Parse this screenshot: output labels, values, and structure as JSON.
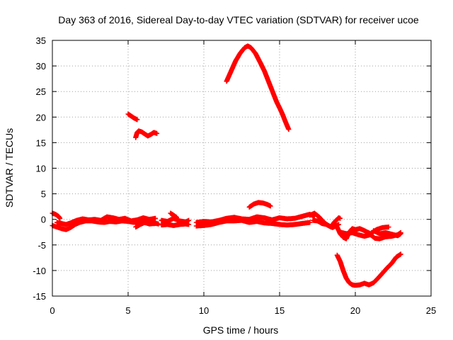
{
  "chart_data": {
    "type": "scatter",
    "title": "Day 363 of 2016, Sidereal Day-to-day VTEC variation (SDTVAR) for receiver ucoe",
    "xlabel": "GPS time / hours",
    "ylabel": "SDTVAR / TECUs",
    "xlim": [
      0,
      25
    ],
    "ylim": [
      -15,
      35
    ],
    "xticks": [
      0,
      5,
      10,
      15,
      20,
      25
    ],
    "yticks": [
      -15,
      -10,
      -5,
      0,
      5,
      10,
      15,
      20,
      25,
      30,
      35
    ],
    "grid": true,
    "marker": "+",
    "color": "#ff0000",
    "series": [
      {
        "name": "arc-1",
        "points": [
          [
            0.0,
            1.2
          ],
          [
            0.2,
            1.0
          ],
          [
            0.4,
            0.6
          ],
          [
            0.5,
            0.2
          ]
        ]
      },
      {
        "name": "arc-2",
        "points": [
          [
            0.0,
            -1.2
          ],
          [
            0.3,
            -1.5
          ],
          [
            0.6,
            -1.8
          ],
          [
            0.9,
            -2.0
          ],
          [
            1.2,
            -1.6
          ],
          [
            1.5,
            -1.0
          ],
          [
            1.8,
            -0.6
          ],
          [
            2.2,
            -0.3
          ],
          [
            2.6,
            -0.3
          ],
          [
            3.0,
            -0.5
          ],
          [
            3.4,
            -0.6
          ],
          [
            3.8,
            -0.4
          ],
          [
            4.2,
            -0.5
          ],
          [
            4.6,
            -0.3
          ],
          [
            5.0,
            -0.4
          ],
          [
            5.4,
            -0.6
          ],
          [
            5.8,
            -0.5
          ],
          [
            6.2,
            -0.7
          ],
          [
            6.6,
            -0.6
          ],
          [
            7.0,
            -0.9
          ]
        ]
      },
      {
        "name": "arc-3",
        "points": [
          [
            0.3,
            -0.6
          ],
          [
            0.6,
            -0.8
          ],
          [
            0.9,
            -1.0
          ],
          [
            1.2,
            -0.7
          ],
          [
            1.6,
            -0.2
          ],
          [
            2.0,
            0.1
          ],
          [
            2.4,
            -0.1
          ],
          [
            2.8,
            0.0
          ],
          [
            3.2,
            -0.2
          ],
          [
            3.6,
            0.5
          ],
          [
            4.0,
            0.3
          ],
          [
            4.4,
            0.0
          ],
          [
            4.8,
            0.2
          ],
          [
            5.2,
            -0.3
          ],
          [
            5.6,
            -0.1
          ],
          [
            6.0,
            0.3
          ],
          [
            6.4,
            0.0
          ],
          [
            6.8,
            0.2
          ]
        ]
      },
      {
        "name": "arc-4",
        "points": [
          [
            5.5,
            -1.5
          ],
          [
            5.8,
            -1.0
          ],
          [
            6.1,
            -0.6
          ],
          [
            6.4,
            -0.9
          ],
          [
            6.8,
            -0.8
          ]
        ]
      },
      {
        "name": "arc-5",
        "points": [
          [
            5.0,
            20.6
          ],
          [
            5.2,
            20.2
          ],
          [
            5.4,
            19.8
          ],
          [
            5.6,
            19.5
          ]
        ]
      },
      {
        "name": "arc-6",
        "points": [
          [
            5.5,
            16.0
          ],
          [
            5.6,
            17.0
          ],
          [
            5.7,
            17.3
          ],
          [
            5.9,
            17.1
          ],
          [
            6.1,
            16.7
          ],
          [
            6.3,
            16.3
          ],
          [
            6.5,
            16.6
          ],
          [
            6.7,
            17.0
          ],
          [
            6.9,
            16.8
          ]
        ]
      },
      {
        "name": "arc-7",
        "points": [
          [
            7.2,
            -0.2
          ],
          [
            7.6,
            -0.4
          ],
          [
            8.0,
            0.2
          ],
          [
            8.4,
            -0.3
          ],
          [
            8.8,
            -0.5
          ],
          [
            9.0,
            -0.2
          ]
        ]
      },
      {
        "name": "arc-8",
        "points": [
          [
            7.2,
            -1.1
          ],
          [
            7.6,
            -1.0
          ],
          [
            8.0,
            -1.2
          ],
          [
            8.4,
            -1.0
          ],
          [
            8.8,
            -0.9
          ],
          [
            9.0,
            -1.0
          ]
        ]
      },
      {
        "name": "arc-9",
        "points": [
          [
            7.8,
            1.2
          ],
          [
            8.0,
            0.8
          ],
          [
            8.2,
            0.4
          ]
        ]
      },
      {
        "name": "arc-10",
        "points": [
          [
            9.5,
            -1.3
          ],
          [
            10.0,
            -1.2
          ],
          [
            10.5,
            -1.0
          ],
          [
            11.0,
            -0.6
          ],
          [
            11.5,
            -0.3
          ],
          [
            12.0,
            -0.3
          ],
          [
            12.5,
            -0.2
          ],
          [
            13.0,
            -0.6
          ],
          [
            13.5,
            -0.4
          ],
          [
            14.0,
            -0.7
          ],
          [
            14.5,
            -0.8
          ],
          [
            15.0,
            -1.0
          ],
          [
            15.5,
            -1.1
          ],
          [
            16.0,
            -1.0
          ],
          [
            16.5,
            -0.8
          ],
          [
            17.0,
            -0.6
          ]
        ]
      },
      {
        "name": "arc-11",
        "points": [
          [
            9.5,
            -0.6
          ],
          [
            10.0,
            -0.4
          ],
          [
            10.5,
            -0.5
          ],
          [
            11.0,
            -0.2
          ],
          [
            11.5,
            0.2
          ],
          [
            12.0,
            0.4
          ],
          [
            12.5,
            0.1
          ],
          [
            13.0,
            0.0
          ],
          [
            13.5,
            0.5
          ],
          [
            14.0,
            0.3
          ],
          [
            14.5,
            -0.1
          ],
          [
            15.0,
            0.3
          ],
          [
            15.5,
            0.1
          ],
          [
            16.0,
            0.2
          ],
          [
            16.5,
            0.6
          ],
          [
            17.0,
            1.0
          ],
          [
            17.3,
            0.6
          ]
        ]
      },
      {
        "name": "arc-12",
        "points": [
          [
            13.0,
            2.4
          ],
          [
            13.3,
            3.0
          ],
          [
            13.6,
            3.3
          ],
          [
            13.9,
            3.2
          ],
          [
            14.2,
            2.9
          ],
          [
            14.4,
            2.6
          ]
        ]
      },
      {
        "name": "arc-13",
        "points": [
          [
            11.5,
            27.0
          ],
          [
            11.8,
            29.0
          ],
          [
            12.1,
            31.0
          ],
          [
            12.4,
            32.5
          ],
          [
            12.7,
            33.6
          ],
          [
            12.9,
            33.9
          ],
          [
            13.1,
            33.6
          ],
          [
            13.4,
            32.5
          ],
          [
            13.7,
            30.8
          ],
          [
            14.0,
            29.0
          ],
          [
            14.2,
            27.5
          ],
          [
            14.4,
            26.0
          ],
          [
            14.6,
            24.5
          ],
          [
            14.8,
            23.0
          ],
          [
            15.0,
            21.8
          ],
          [
            15.2,
            20.5
          ],
          [
            15.4,
            19.0
          ],
          [
            15.6,
            17.6
          ]
        ]
      },
      {
        "name": "arc-14",
        "points": [
          [
            17.0,
            0.8
          ],
          [
            17.3,
            1.2
          ],
          [
            17.6,
            0.5
          ],
          [
            17.9,
            -0.5
          ],
          [
            18.2,
            -1.2
          ],
          [
            18.5,
            -1.6
          ],
          [
            18.7,
            -1.3
          ],
          [
            18.9,
            -1.0
          ]
        ]
      },
      {
        "name": "arc-15",
        "points": [
          [
            17.2,
            -0.2
          ],
          [
            17.5,
            -0.3
          ],
          [
            17.8,
            -0.8
          ],
          [
            18.1,
            -1.0
          ],
          [
            18.4,
            -1.5
          ],
          [
            18.6,
            -0.6
          ],
          [
            18.9,
            0.3
          ],
          [
            19.0,
            0.2
          ]
        ]
      },
      {
        "name": "arc-16",
        "points": [
          [
            18.8,
            -1.5
          ],
          [
            19.0,
            -2.8
          ],
          [
            19.2,
            -3.5
          ],
          [
            19.4,
            -3.8
          ],
          [
            19.6,
            -2.5
          ],
          [
            19.8,
            -1.8
          ],
          [
            20.0,
            -2.0
          ],
          [
            20.3,
            -1.8
          ],
          [
            20.6,
            -2.2
          ],
          [
            21.0,
            -2.8
          ],
          [
            21.4,
            -2.0
          ],
          [
            21.8,
            -1.6
          ],
          [
            22.2,
            -1.5
          ]
        ]
      },
      {
        "name": "arc-17",
        "points": [
          [
            19.0,
            -2.5
          ],
          [
            19.4,
            -2.8
          ],
          [
            19.8,
            -2.6
          ],
          [
            20.2,
            -3.0
          ],
          [
            20.6,
            -3.3
          ],
          [
            21.0,
            -3.0
          ],
          [
            21.3,
            -3.7
          ],
          [
            21.6,
            -3.8
          ],
          [
            22.0,
            -3.4
          ],
          [
            22.4,
            -3.3
          ],
          [
            22.8,
            -3.0
          ],
          [
            23.0,
            -2.6
          ]
        ]
      },
      {
        "name": "arc-18",
        "points": [
          [
            21.2,
            -2.2
          ],
          [
            21.6,
            -2.8
          ],
          [
            22.0,
            -2.6
          ],
          [
            22.4,
            -2.9
          ],
          [
            22.8,
            -3.2
          ],
          [
            23.0,
            -2.8
          ]
        ]
      },
      {
        "name": "arc-19",
        "points": [
          [
            18.8,
            -7.0
          ],
          [
            19.0,
            -8.2
          ],
          [
            19.2,
            -10.0
          ],
          [
            19.4,
            -11.5
          ],
          [
            19.6,
            -12.4
          ],
          [
            19.8,
            -12.8
          ],
          [
            20.0,
            -12.9
          ],
          [
            20.3,
            -12.8
          ],
          [
            20.6,
            -12.5
          ],
          [
            20.9,
            -12.8
          ],
          [
            21.2,
            -12.4
          ],
          [
            21.5,
            -11.5
          ],
          [
            21.8,
            -10.5
          ],
          [
            22.1,
            -9.5
          ],
          [
            22.4,
            -8.6
          ],
          [
            22.7,
            -7.4
          ],
          [
            23.0,
            -6.8
          ]
        ]
      }
    ]
  }
}
